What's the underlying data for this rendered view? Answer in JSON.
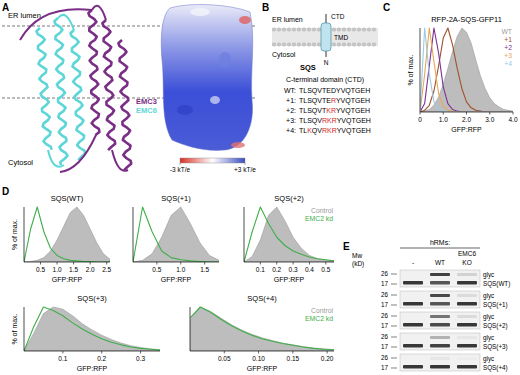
{
  "panel_letters": [
    "A",
    "B",
    "C",
    "D",
    "E"
  ],
  "panel_a": {
    "lumen_label": "ER lumen",
    "cytosol_label": "Cytosol",
    "chains": [
      {
        "name": "EMC3",
        "color": "#7a2e86"
      },
      {
        "name": "EMC6",
        "color": "#5ed6d8"
      }
    ],
    "colorbar": {
      "range": [
        -3,
        3
      ],
      "ticks": [
        {
          "value": -3,
          "label": "-3 kT/e"
        },
        {
          "value": 3,
          "label": "+3 kT/e"
        }
      ]
    }
  },
  "panel_b": {
    "lumen_label": "ER lumen",
    "cytosol_label": "Cytosol",
    "ctd_label": "CTD",
    "tmd_label": "TMD",
    "n_label": "N",
    "protein_label": "SQS",
    "heading": "C-terminal domain (CTD)",
    "sequences": [
      {
        "label": "WT:",
        "sequence": "TLSQVTEDYVQTGEH",
        "mutated": []
      },
      {
        "label": "+1:",
        "sequence": "TLSQVTERYVQTGEH",
        "mutated": [
          7
        ]
      },
      {
        "label": "+2:",
        "sequence": "TLSQVTKRYVQTGEH",
        "mutated": [
          6,
          7
        ]
      },
      {
        "label": "+3:",
        "sequence": "TLSQVRKRYVQTGEH",
        "mutated": [
          5,
          6,
          7
        ]
      },
      {
        "label": "+4:",
        "sequence": "TLKQVRKRYVQTGEH",
        "mutated": [
          2,
          5,
          6,
          7
        ]
      }
    ]
  },
  "chart_data": [
    {
      "type": "line",
      "title": "RFP-2A-SQS-GFP11",
      "x_label": "GFP:RFP",
      "y_label": "% of max.",
      "x": [
        0,
        0.2,
        0.4,
        0.6,
        0.8,
        1,
        1.2,
        1.4,
        1.6,
        1.8,
        2,
        2.2,
        2.4,
        2.6,
        2.8,
        3,
        3.2,
        3.4,
        3.6,
        3.8,
        4
      ],
      "xlim": [
        0,
        4
      ],
      "xticks": [
        0,
        {
          "value": 1,
          "label": "1.0"
        },
        {
          "value": 2,
          "label": "2.0"
        },
        {
          "value": 3,
          "label": "3.0"
        },
        {
          "value": 4,
          "label": "4.0"
        }
      ],
      "ylim": [
        0,
        100
      ],
      "tick_labels": "x",
      "grid": false,
      "legend": "upper right",
      "series": [
        {
          "name": "WT",
          "color": "#bdbdbd",
          "type": "area",
          "values": [
            0,
            1,
            3,
            8,
            18,
            33,
            52,
            72,
            90,
            100,
            95,
            82,
            62,
            43,
            28,
            17,
            10,
            6,
            3,
            2,
            1
          ]
        },
        {
          "name": "+1",
          "color": "#a0522d",
          "type": "line",
          "values": [
            0,
            2,
            8,
            25,
            55,
            88,
            100,
            80,
            52,
            28,
            12,
            5,
            2,
            1,
            0,
            0,
            0,
            0,
            0,
            0,
            0
          ]
        },
        {
          "name": "+2",
          "color": "#7b3294",
          "type": "line",
          "values": [
            0,
            10,
            55,
            100,
            70,
            30,
            10,
            3,
            1,
            0,
            0,
            0,
            0,
            0,
            0,
            0,
            0,
            0,
            0,
            0,
            0
          ]
        },
        {
          "name": "+3",
          "color": "#e6a75a",
          "type": "line",
          "values": [
            0,
            45,
            100,
            60,
            22,
            7,
            2,
            1,
            0,
            0,
            0,
            0,
            0,
            0,
            0,
            0,
            0,
            0,
            0,
            0,
            0
          ]
        },
        {
          "name": "+4",
          "color": "#9ecae1",
          "type": "line",
          "values": [
            0,
            100,
            45,
            12,
            3,
            1,
            0,
            0,
            0,
            0,
            0,
            0,
            0,
            0,
            0,
            0,
            0,
            0,
            0,
            0,
            0
          ]
        }
      ]
    },
    {
      "type": "line",
      "title": "SQS(WT)",
      "x_label": "GFP:RFP",
      "y_label": "% of max.",
      "x": [
        0,
        0.2,
        0.4,
        0.6,
        0.8,
        1,
        1.2,
        1.4,
        1.6,
        1.8,
        2,
        2.2,
        2.4,
        2.6
      ],
      "xlim": [
        0,
        2.6
      ],
      "xticks": [
        0.5,
        {
          "value": 1,
          "label": "1.0"
        },
        1.5,
        {
          "value": 2,
          "label": "2.0"
        },
        2.5
      ],
      "ylim": [
        0,
        100
      ],
      "tick_labels": "x",
      "grid": false,
      "series": [
        {
          "name": "Control",
          "color": "#bdbdbd",
          "type": "area",
          "values": [
            0,
            1,
            3,
            8,
            20,
            40,
            65,
            90,
            100,
            85,
            60,
            35,
            15,
            5
          ]
        },
        {
          "name": "EMC2 kd",
          "color": "#3fae49",
          "type": "line",
          "values": [
            0,
            60,
            100,
            55,
            25,
            12,
            6,
            3,
            2,
            1,
            1,
            0,
            0,
            0
          ]
        }
      ]
    },
    {
      "type": "line",
      "title": "SQS(+1)",
      "x_label": "GFP:RFP",
      "x": [
        0,
        0.2,
        0.4,
        0.6,
        0.8,
        1,
        1.2,
        1.4,
        1.6,
        1.8
      ],
      "xlim": [
        0,
        1.8
      ],
      "xticks": [
        0.5,
        {
          "value": 1,
          "label": "1.0"
        },
        1.5
      ],
      "ylim": [
        0,
        100
      ],
      "tick_labels": "x",
      "grid": false,
      "series": [
        {
          "name": "Control",
          "color": "#bdbdbd",
          "type": "area",
          "values": [
            0,
            3,
            15,
            45,
            85,
            100,
            70,
            35,
            12,
            3
          ]
        },
        {
          "name": "EMC2 kd",
          "color": "#3fae49",
          "type": "line",
          "values": [
            0,
            100,
            55,
            20,
            8,
            4,
            2,
            1,
            0,
            0
          ]
        }
      ]
    },
    {
      "type": "line",
      "title": "SQS(+2)",
      "x_label": "GFP:RFP",
      "x": [
        0,
        0.05,
        0.1,
        0.15,
        0.2,
        0.25,
        0.3,
        0.35,
        0.4,
        0.45,
        0.5,
        0.55
      ],
      "xlim": [
        0,
        0.55
      ],
      "xticks": [
        0.1,
        0.2,
        0.3,
        0.4,
        0.5
      ],
      "ylim": [
        0,
        100
      ],
      "tick_labels": "x",
      "grid": false,
      "legend": "upper right",
      "series": [
        {
          "name": "Control",
          "color": "#bdbdbd",
          "type": "area",
          "values": [
            0,
            10,
            40,
            85,
            100,
            75,
            45,
            25,
            12,
            6,
            3,
            1
          ]
        },
        {
          "name": "EMC2 kd",
          "color": "#3fae49",
          "type": "line",
          "values": [
            0,
            55,
            100,
            70,
            45,
            30,
            20,
            14,
            9,
            6,
            4,
            2
          ]
        }
      ]
    },
    {
      "type": "line",
      "title": "SQS(+3)",
      "x_label": "GFP:RFP",
      "y_label": "% of max.",
      "x": [
        0,
        0.025,
        0.05,
        0.075,
        0.1,
        0.125,
        0.15,
        0.175,
        0.2,
        0.225,
        0.25,
        0.275,
        0.3,
        0.325,
        0.35
      ],
      "xlim": [
        0,
        0.35
      ],
      "xticks": [
        0.1,
        0.2,
        0.3
      ],
      "ylim": [
        0,
        100
      ],
      "tick_labels": "x",
      "grid": false,
      "series": [
        {
          "name": "Control",
          "color": "#bdbdbd",
          "type": "area",
          "values": [
            0,
            40,
            85,
            100,
            95,
            80,
            62,
            48,
            36,
            26,
            18,
            12,
            8,
            5,
            3
          ]
        },
        {
          "name": "EMC2 kd",
          "color": "#3fae49",
          "type": "line",
          "values": [
            0,
            55,
            100,
            92,
            80,
            64,
            50,
            38,
            28,
            20,
            14,
            9,
            6,
            4,
            2
          ]
        }
      ]
    },
    {
      "type": "line",
      "title": "SQS(+4)",
      "x_label": "GFP:RFP",
      "x": [
        0,
        0.015,
        0.03,
        0.045,
        0.06,
        0.075,
        0.09,
        0.105,
        0.12,
        0.135,
        0.15,
        0.165,
        0.18,
        0.195,
        0.21
      ],
      "xlim": [
        0,
        0.21
      ],
      "xticks": [
        0.05,
        {
          "value": 0.1,
          "label": "0.10"
        },
        0.15,
        {
          "value": 0.2,
          "label": "0.20"
        }
      ],
      "ylim": [
        0,
        100
      ],
      "tick_labels": "x",
      "grid": false,
      "legend": "upper right",
      "series": [
        {
          "name": "Control",
          "color": "#bdbdbd",
          "type": "area",
          "values": [
            70,
            100,
            90,
            75,
            60,
            48,
            38,
            30,
            24,
            18,
            14,
            10,
            7,
            5,
            3
          ]
        },
        {
          "name": "EMC2 kd",
          "color": "#3fae49",
          "type": "line",
          "values": [
            75,
            100,
            88,
            72,
            58,
            46,
            36,
            28,
            22,
            17,
            13,
            9,
            6,
            4,
            3
          ]
        }
      ]
    }
  ],
  "panel_e": {
    "header": "hRMs:",
    "group_label": "EMC6",
    "lanes": [
      "-",
      "WT",
      "KO"
    ],
    "mw_label": [
      "Mw",
      "(kD)"
    ],
    "markers": [
      26,
      17
    ],
    "band_label": "glyc",
    "blots": [
      {
        "label": "SQS(WT)",
        "glyc": [
          0,
          0.85,
          0.15
        ],
        "base": [
          0.9,
          0.75,
          0.9
        ]
      },
      {
        "label": "SQS(+1)",
        "glyc": [
          0,
          0.8,
          0.1
        ],
        "base": [
          0.9,
          0.75,
          0.9
        ]
      },
      {
        "label": "SQS(+2)",
        "glyc": [
          0,
          0.6,
          0.1
        ],
        "base": [
          0.9,
          0.8,
          0.9
        ]
      },
      {
        "label": "SQS(+3)",
        "glyc": [
          0,
          0.3,
          0.05
        ],
        "base": [
          0.9,
          0.85,
          0.9
        ]
      },
      {
        "label": "SQS(+4)",
        "glyc": [
          0,
          0.05,
          0.02
        ],
        "base": [
          0.9,
          0.9,
          0.9
        ]
      }
    ]
  }
}
